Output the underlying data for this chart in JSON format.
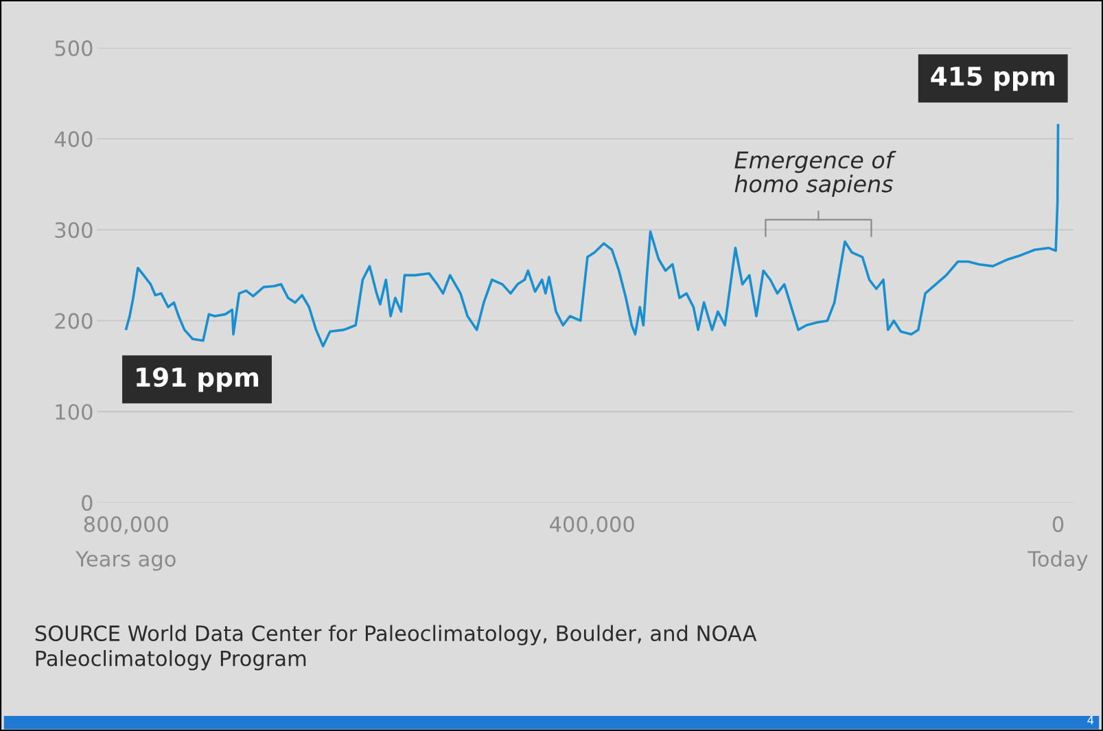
{
  "chart_data": {
    "type": "line",
    "x": [
      800000,
      797000,
      794000,
      790000,
      785000,
      779000,
      775000,
      770000,
      764000,
      759000,
      755000,
      750000,
      743000,
      734000,
      729000,
      724000,
      715000,
      709000,
      708000,
      703000,
      697000,
      691000,
      682000,
      673000,
      667000,
      661000,
      655000,
      649000,
      643000,
      637000,
      631000,
      625000,
      613000,
      603000,
      597000,
      591000,
      585000,
      582000,
      577000,
      573000,
      569000,
      564000,
      561000,
      552000,
      540000,
      533000,
      528000,
      522000,
      513000,
      507000,
      499000,
      493000,
      486000,
      477000,
      470000,
      464000,
      458000,
      455000,
      449000,
      443000,
      440000,
      437000,
      431000,
      425000,
      419000,
      410000,
      404000,
      398000,
      390000,
      383000,
      377000,
      371000,
      366000,
      363000,
      359000,
      356000,
      353000,
      350000,
      343000,
      337000,
      331000,
      325000,
      319000,
      313000,
      309000,
      304000,
      297000,
      292000,
      286000,
      277000,
      271000,
      265000,
      259000,
      253000,
      247000,
      241000,
      235000,
      229000,
      223000,
      216000,
      207000,
      198000,
      192000,
      183000,
      177000,
      168000,
      162000,
      156000,
      150000,
      146000,
      141000,
      135000,
      126000,
      120000,
      114000,
      105000,
      96000,
      86000,
      77000,
      68000,
      56000,
      44000,
      32000,
      20000,
      8000,
      2000,
      500,
      0
    ],
    "series": [
      {
        "color": "#1a8fd0",
        "values": [
          191,
          205,
          225,
          258,
          250,
          240,
          228,
          230,
          215,
          220,
          205,
          190,
          180,
          178,
          207,
          205,
          207,
          212,
          185,
          230,
          233,
          227,
          237,
          238,
          240,
          225,
          220,
          228,
          215,
          190,
          172,
          188,
          190,
          195,
          245,
          260,
          230,
          218,
          245,
          205,
          225,
          210,
          250,
          250,
          252,
          240,
          230,
          250,
          230,
          205,
          190,
          220,
          245,
          240,
          230,
          240,
          245,
          255,
          232,
          245,
          230,
          248,
          210,
          195,
          205,
          200,
          270,
          275,
          285,
          278,
          255,
          225,
          195,
          185,
          215,
          195,
          250,
          298,
          268,
          255,
          262,
          225,
          230,
          215,
          190,
          220,
          190,
          210,
          195,
          280,
          240,
          250,
          205,
          255,
          245,
          230,
          240,
          215,
          190,
          195,
          198,
          200,
          220,
          287,
          275,
          270,
          245,
          235,
          245,
          190,
          200,
          188,
          185,
          190,
          230,
          240,
          250,
          265,
          265,
          262,
          260,
          267,
          272,
          278,
          280,
          277,
          330,
          415
        ],
        "value_labels": [
          "191 ppm",
          null,
          null,
          null,
          null,
          null,
          null,
          null,
          null,
          null,
          null,
          null,
          null,
          null,
          null,
          null,
          null,
          null,
          null,
          null,
          null,
          null,
          null,
          null,
          null,
          null,
          null,
          null,
          null,
          null,
          null,
          null,
          null,
          null,
          null,
          null,
          null,
          null,
          null,
          null,
          null,
          null,
          null,
          null,
          null,
          null,
          null,
          null,
          null,
          null,
          null,
          null,
          null,
          null,
          null,
          null,
          null,
          null,
          null,
          null,
          null,
          null,
          null,
          null,
          null,
          null,
          null,
          null,
          null,
          null,
          null,
          null,
          null,
          null,
          null,
          null,
          null,
          null,
          null,
          null,
          null,
          null,
          null,
          null,
          null,
          null,
          null,
          null,
          null,
          null,
          null,
          null,
          null,
          null,
          null,
          null,
          null,
          null,
          null,
          null,
          null,
          null,
          null,
          null,
          null,
          null,
          null,
          null,
          null,
          null,
          null,
          null,
          null,
          null,
          null,
          null,
          null,
          null,
          null,
          null,
          null,
          null,
          null,
          null,
          null,
          null,
          null,
          "415 ppm"
        ]
      }
    ],
    "xlim": [
      825000,
      -13000
    ],
    "xticks": [
      {
        "value": 800000,
        "label": "800,000\nYears ago"
      },
      {
        "value": 400000,
        "label": "400,000"
      },
      {
        "value": 0,
        "label": "0\nToday"
      }
    ],
    "ylim": [
      0,
      500
    ],
    "yticks": [
      0,
      100,
      200,
      300,
      400,
      500
    ],
    "grid": "y",
    "line_style": "solid",
    "annotations": [
      "Emergence of\nhomo sapiens",
      "SOURCE World Data Center for Paleoclimatology, Boulder, and NOAA\nPaleoclimatology Program",
      "4"
    ]
  }
}
